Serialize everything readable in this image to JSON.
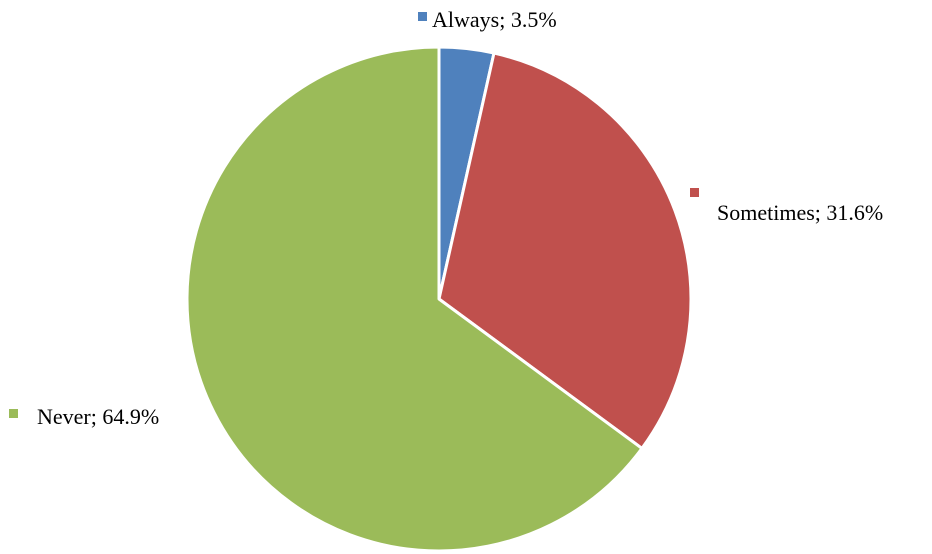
{
  "chart_data": {
    "type": "pie",
    "categories": [
      "Always",
      "Sometimes",
      "Never"
    ],
    "values": [
      3.5,
      31.6,
      64.9
    ],
    "unit": "%",
    "colors": [
      "#4F81BD",
      "#C0504D",
      "#9BBB59"
    ],
    "data_labels": [
      "Always; 3.5%",
      "Sometimes; 31.6%",
      "Never; 64.9%"
    ],
    "start_angle": "12 o'clock",
    "direction": "clockwise",
    "legend": "none (labels beside slices)"
  }
}
